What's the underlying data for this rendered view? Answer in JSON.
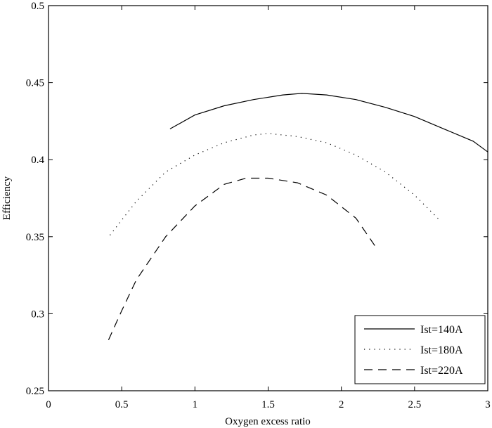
{
  "chart_data": {
    "type": "line",
    "title": "",
    "xlabel": "Oxygen excess ratio",
    "ylabel": "Efficiency",
    "xlim": [
      0,
      3
    ],
    "ylim": [
      0.25,
      0.5
    ],
    "xticks": [
      0,
      0.5,
      1,
      1.5,
      2,
      2.5,
      3
    ],
    "xtick_labels": [
      "0",
      "0.5",
      "1",
      "1.5",
      "2",
      "2.5",
      "3"
    ],
    "yticks": [
      0.25,
      0.3,
      0.35,
      0.4,
      0.45,
      0.5
    ],
    "ytick_labels": [
      "0.25",
      "0.3",
      "0.35",
      "0.4",
      "0.45",
      "0.5"
    ],
    "grid": false,
    "legend_position": "bottom-right",
    "series": [
      {
        "name": "Ist=140A",
        "style": "solid",
        "color": "#000000",
        "x": [
          0.83,
          1.0,
          1.2,
          1.4,
          1.6,
          1.73,
          1.9,
          2.1,
          2.3,
          2.5,
          2.7,
          2.9,
          3.0
        ],
        "y": [
          0.42,
          0.429,
          0.435,
          0.439,
          0.442,
          0.443,
          0.442,
          0.439,
          0.434,
          0.428,
          0.42,
          0.412,
          0.405
        ]
      },
      {
        "name": "Ist=180A",
        "style": "dotted",
        "color": "#000000",
        "x": [
          0.42,
          0.6,
          0.8,
          1.0,
          1.2,
          1.4,
          1.5,
          1.7,
          1.9,
          2.1,
          2.3,
          2.5,
          2.68
        ],
        "y": [
          0.351,
          0.373,
          0.392,
          0.403,
          0.411,
          0.416,
          0.417,
          0.415,
          0.411,
          0.403,
          0.392,
          0.377,
          0.36
        ]
      },
      {
        "name": "Ist=220A",
        "style": "dashed",
        "color": "#000000",
        "x": [
          0.41,
          0.5,
          0.6,
          0.8,
          1.0,
          1.2,
          1.35,
          1.5,
          1.7,
          1.9,
          2.1,
          2.23
        ],
        "y": [
          0.283,
          0.302,
          0.322,
          0.35,
          0.37,
          0.384,
          0.388,
          0.388,
          0.385,
          0.377,
          0.362,
          0.344
        ]
      }
    ]
  }
}
